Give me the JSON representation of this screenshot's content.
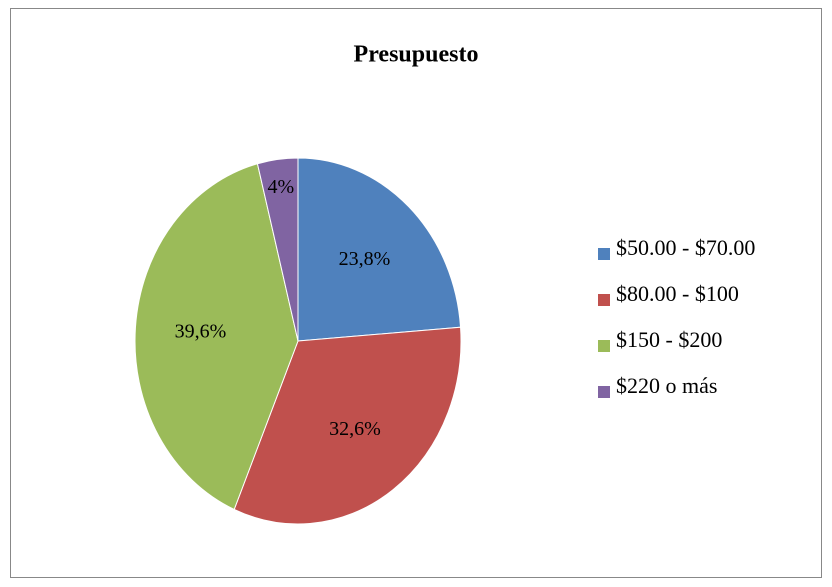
{
  "chart_data": {
    "type": "pie",
    "title": "Presupuesto",
    "categories": [
      "$50.00 - $70.00",
      "$80.00 - $100",
      "$150 - $200",
      "$220 o más"
    ],
    "values": [
      23.8,
      32.6,
      39.6,
      4
    ],
    "value_labels": [
      "23,8%",
      "32,6%",
      "39,6%",
      "4%"
    ],
    "colors": [
      "#4f81bd",
      "#c0504d",
      "#9bbb59",
      "#8064a2"
    ],
    "legend": "right"
  }
}
